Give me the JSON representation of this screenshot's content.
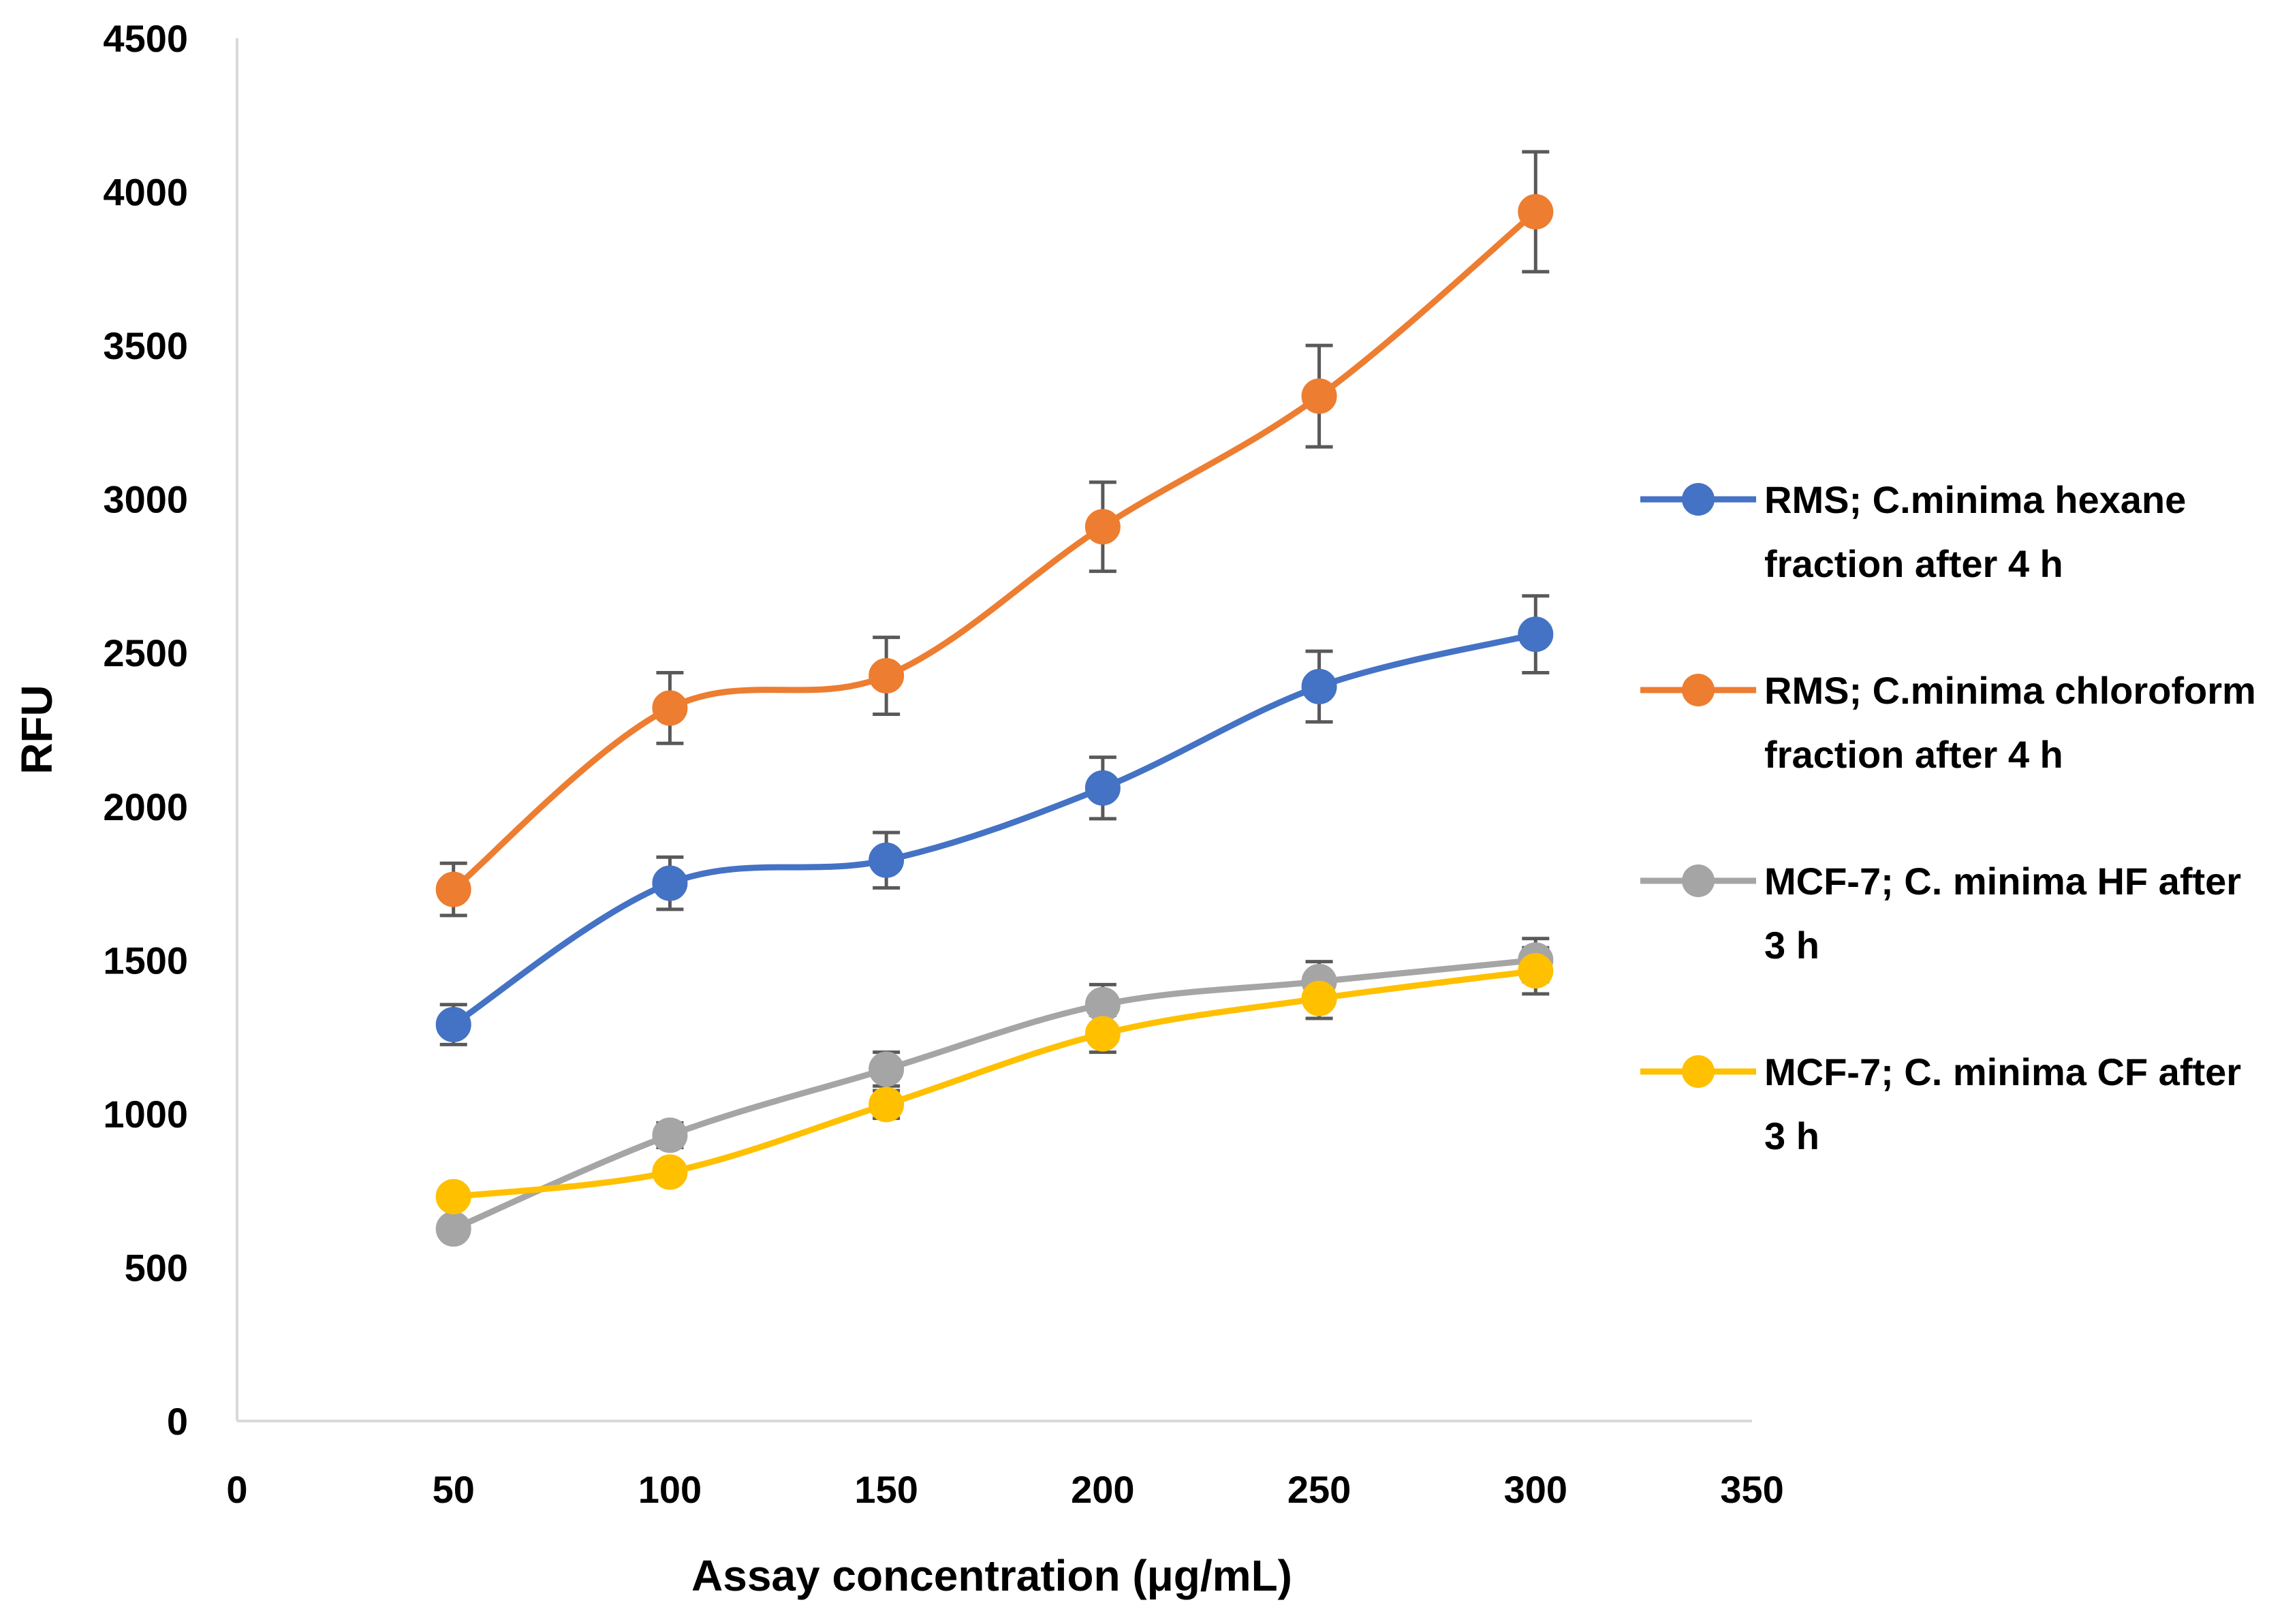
{
  "chart_data": {
    "type": "line",
    "title": "",
    "xlabel": "Assay concentration (μg/mL)",
    "ylabel": "RFU",
    "xlim": [
      0,
      350
    ],
    "ylim": [
      0,
      4500
    ],
    "x_ticks": [
      "0",
      "50",
      "100",
      "150",
      "200",
      "250",
      "300",
      "350"
    ],
    "y_ticks": [
      "0",
      "500",
      "1000",
      "1500",
      "2000",
      "2500",
      "3000",
      "3500",
      "4000",
      "4500"
    ],
    "grid": false,
    "legend_position": "right",
    "x": [
      50,
      100,
      150,
      200,
      250,
      300
    ],
    "series": [
      {
        "name": "RMS; C.minima hexane fraction after 4 h",
        "legend_lines": [
          "RMS; C.minima hexane",
          "fraction after 4 h"
        ],
        "color": "#4472C4",
        "values": [
          1290,
          1750,
          1825,
          2060,
          2390,
          2560
        ],
        "errors": [
          65,
          85,
          90,
          100,
          115,
          125
        ]
      },
      {
        "name": "RMS; C.minima chloroform fraction after 4 h",
        "legend_lines": [
          "RMS; C.minima chloroform",
          "fraction after 4 h"
        ],
        "color": "#ED7D31",
        "values": [
          1730,
          2320,
          2425,
          2910,
          3335,
          3935
        ],
        "errors": [
          85,
          115,
          125,
          145,
          165,
          195
        ]
      },
      {
        "name": "MCF-7; C. minima HF after 3 h",
        "legend_lines": [
          "MCF-7; C. minima HF after",
          "3 h"
        ],
        "color": "#A5A5A5",
        "values": [
          625,
          930,
          1145,
          1355,
          1430,
          1500
        ],
        "errors": [
          25,
          40,
          55,
          65,
          65,
          70
        ]
      },
      {
        "name": "MCF-7; C. minima CF after 3 h",
        "legend_lines": [
          "MCF-7; C. minima CF after",
          "3 h"
        ],
        "color": "#FFC000",
        "values": [
          730,
          810,
          1030,
          1260,
          1375,
          1465
        ],
        "errors": [
          20,
          30,
          45,
          60,
          65,
          75
        ]
      }
    ]
  }
}
